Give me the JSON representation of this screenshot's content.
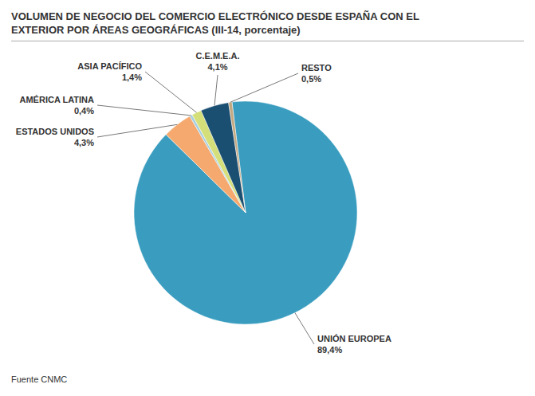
{
  "chart_data": {
    "type": "pie",
    "title": "VOLUMEN DE NEGOCIO DEL COMERCIO ELECTRÓNICO DESDE ESPAÑA CON EL\nEXTERIOR POR ÁREAS GEOGRÁFICAS (III-14, porcentaje)",
    "categories": [
      "UNIÓN EUROPEA",
      "ESTADOS UNIDOS",
      "AMÉRICA LATINA",
      "ASIA PACÍFICO",
      "C.E.M.E.A.",
      "RESTO"
    ],
    "values": [
      89.4,
      4.3,
      0.4,
      1.4,
      4.1,
      0.5
    ],
    "value_labels": [
      "89,4%",
      "4,3%",
      "0,4%",
      "1,4%",
      "4,1%",
      "0,5%"
    ],
    "colors": [
      "#3a9dbf",
      "#f5a96e",
      "#a8cfe0",
      "#d4df7a",
      "#1a4f72",
      "#c4a882"
    ],
    "data_labels": true,
    "annotations": [
      "Fuente CNMC"
    ]
  }
}
